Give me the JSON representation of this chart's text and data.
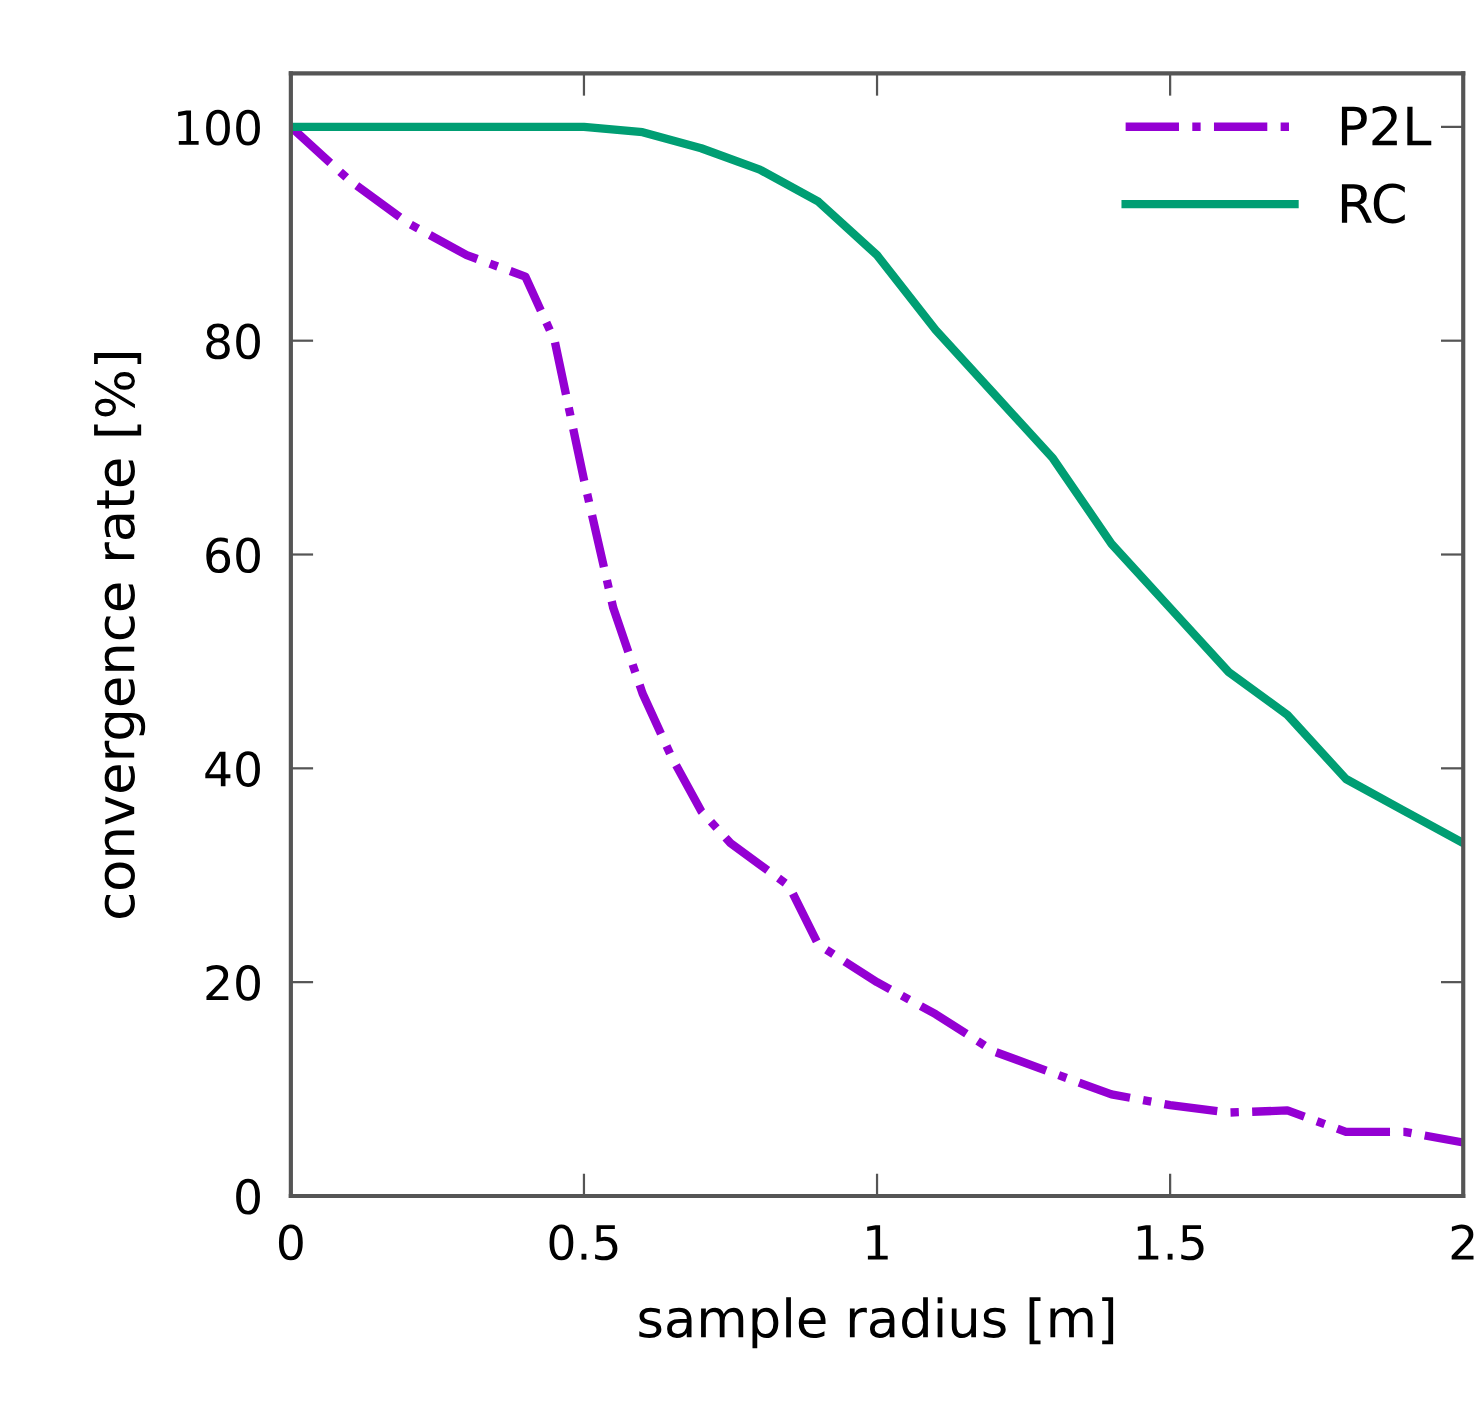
{
  "chart_data": {
    "type": "line",
    "xlabel": "sample radius [m]",
    "ylabel": "convergence rate [%]",
    "xlim": [
      0,
      2
    ],
    "ylim": [
      0,
      105
    ],
    "xticks": [
      0,
      0.5,
      1,
      1.5,
      2
    ],
    "yticks": [
      0,
      20,
      40,
      60,
      80,
      100
    ],
    "grid": false,
    "legend": "top right",
    "marker": "none",
    "series": [
      {
        "name": "P2L",
        "color": "#9400d3",
        "line_style": "dashdot",
        "x": [
          0,
          0.1,
          0.2,
          0.3,
          0.4,
          0.45,
          0.5,
          0.55,
          0.6,
          0.65,
          0.7,
          0.75,
          0.8,
          0.85,
          0.9,
          1.0,
          1.1,
          1.2,
          1.3,
          1.4,
          1.5,
          1.6,
          1.7,
          1.8,
          1.9,
          2.0
        ],
        "values": [
          100,
          95,
          91,
          88,
          86,
          80,
          67,
          55,
          47,
          41,
          36,
          33,
          31,
          29,
          23.5,
          20,
          17,
          13.5,
          11.5,
          9.5,
          8.5,
          7.8,
          8,
          6,
          6,
          5
        ]
      },
      {
        "name": "RC",
        "color": "#009e73",
        "line_style": "solid",
        "x": [
          0,
          0.5,
          0.6,
          0.7,
          0.8,
          0.9,
          1.0,
          1.1,
          1.2,
          1.3,
          1.4,
          1.5,
          1.6,
          1.7,
          1.8,
          1.9,
          2.0
        ],
        "values": [
          100,
          100,
          99.5,
          98,
          96,
          93,
          88,
          81,
          75,
          69,
          61,
          55,
          49,
          45,
          39,
          36,
          33
        ]
      }
    ]
  }
}
